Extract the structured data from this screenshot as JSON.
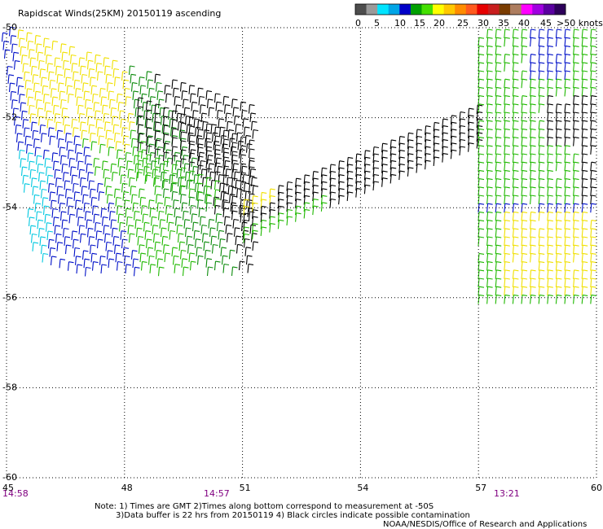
{
  "title": "Rapidscat Winds(25KM) 20150119 ascending",
  "legend": {
    "labels": [
      "0",
      "5",
      "10",
      "15",
      "20",
      "25",
      "30",
      "35",
      "40",
      "45",
      ">50 knots"
    ],
    "colors": [
      "#4d4d4d",
      "#9a9a9a",
      "#00e4ff",
      "#00a5e6",
      "#0000c8",
      "#00a000",
      "#44e000",
      "#ffff00",
      "#ffc800",
      "#ff8c00",
      "#ff5a1e",
      "#e60000",
      "#c81e1e",
      "#7a3c00",
      "#ad7d5f",
      "#ff00ff",
      "#a000e0",
      "#5a00a0",
      "#2d005a"
    ]
  },
  "map": {
    "lon_ticks": [
      "45",
      "48",
      "51",
      "54",
      "57",
      "60"
    ],
    "lat_ticks": [
      "-50",
      "-52",
      "-54",
      "-56",
      "-58",
      "-60"
    ],
    "lon_range": [
      45,
      60
    ],
    "lat_range": [
      -60,
      -50
    ]
  },
  "times": [
    "14:58",
    "14:57",
    "13:21"
  ],
  "notes": [
    "Note: 1) Times are GMT 2)Times along bottom correspond to measurement at -50S",
    "3)Data buffer is 22 hrs from 20150119 4) Black circles indicate possible contamination",
    "NOAA/NESDIS/Office of Research and Applications"
  ]
}
